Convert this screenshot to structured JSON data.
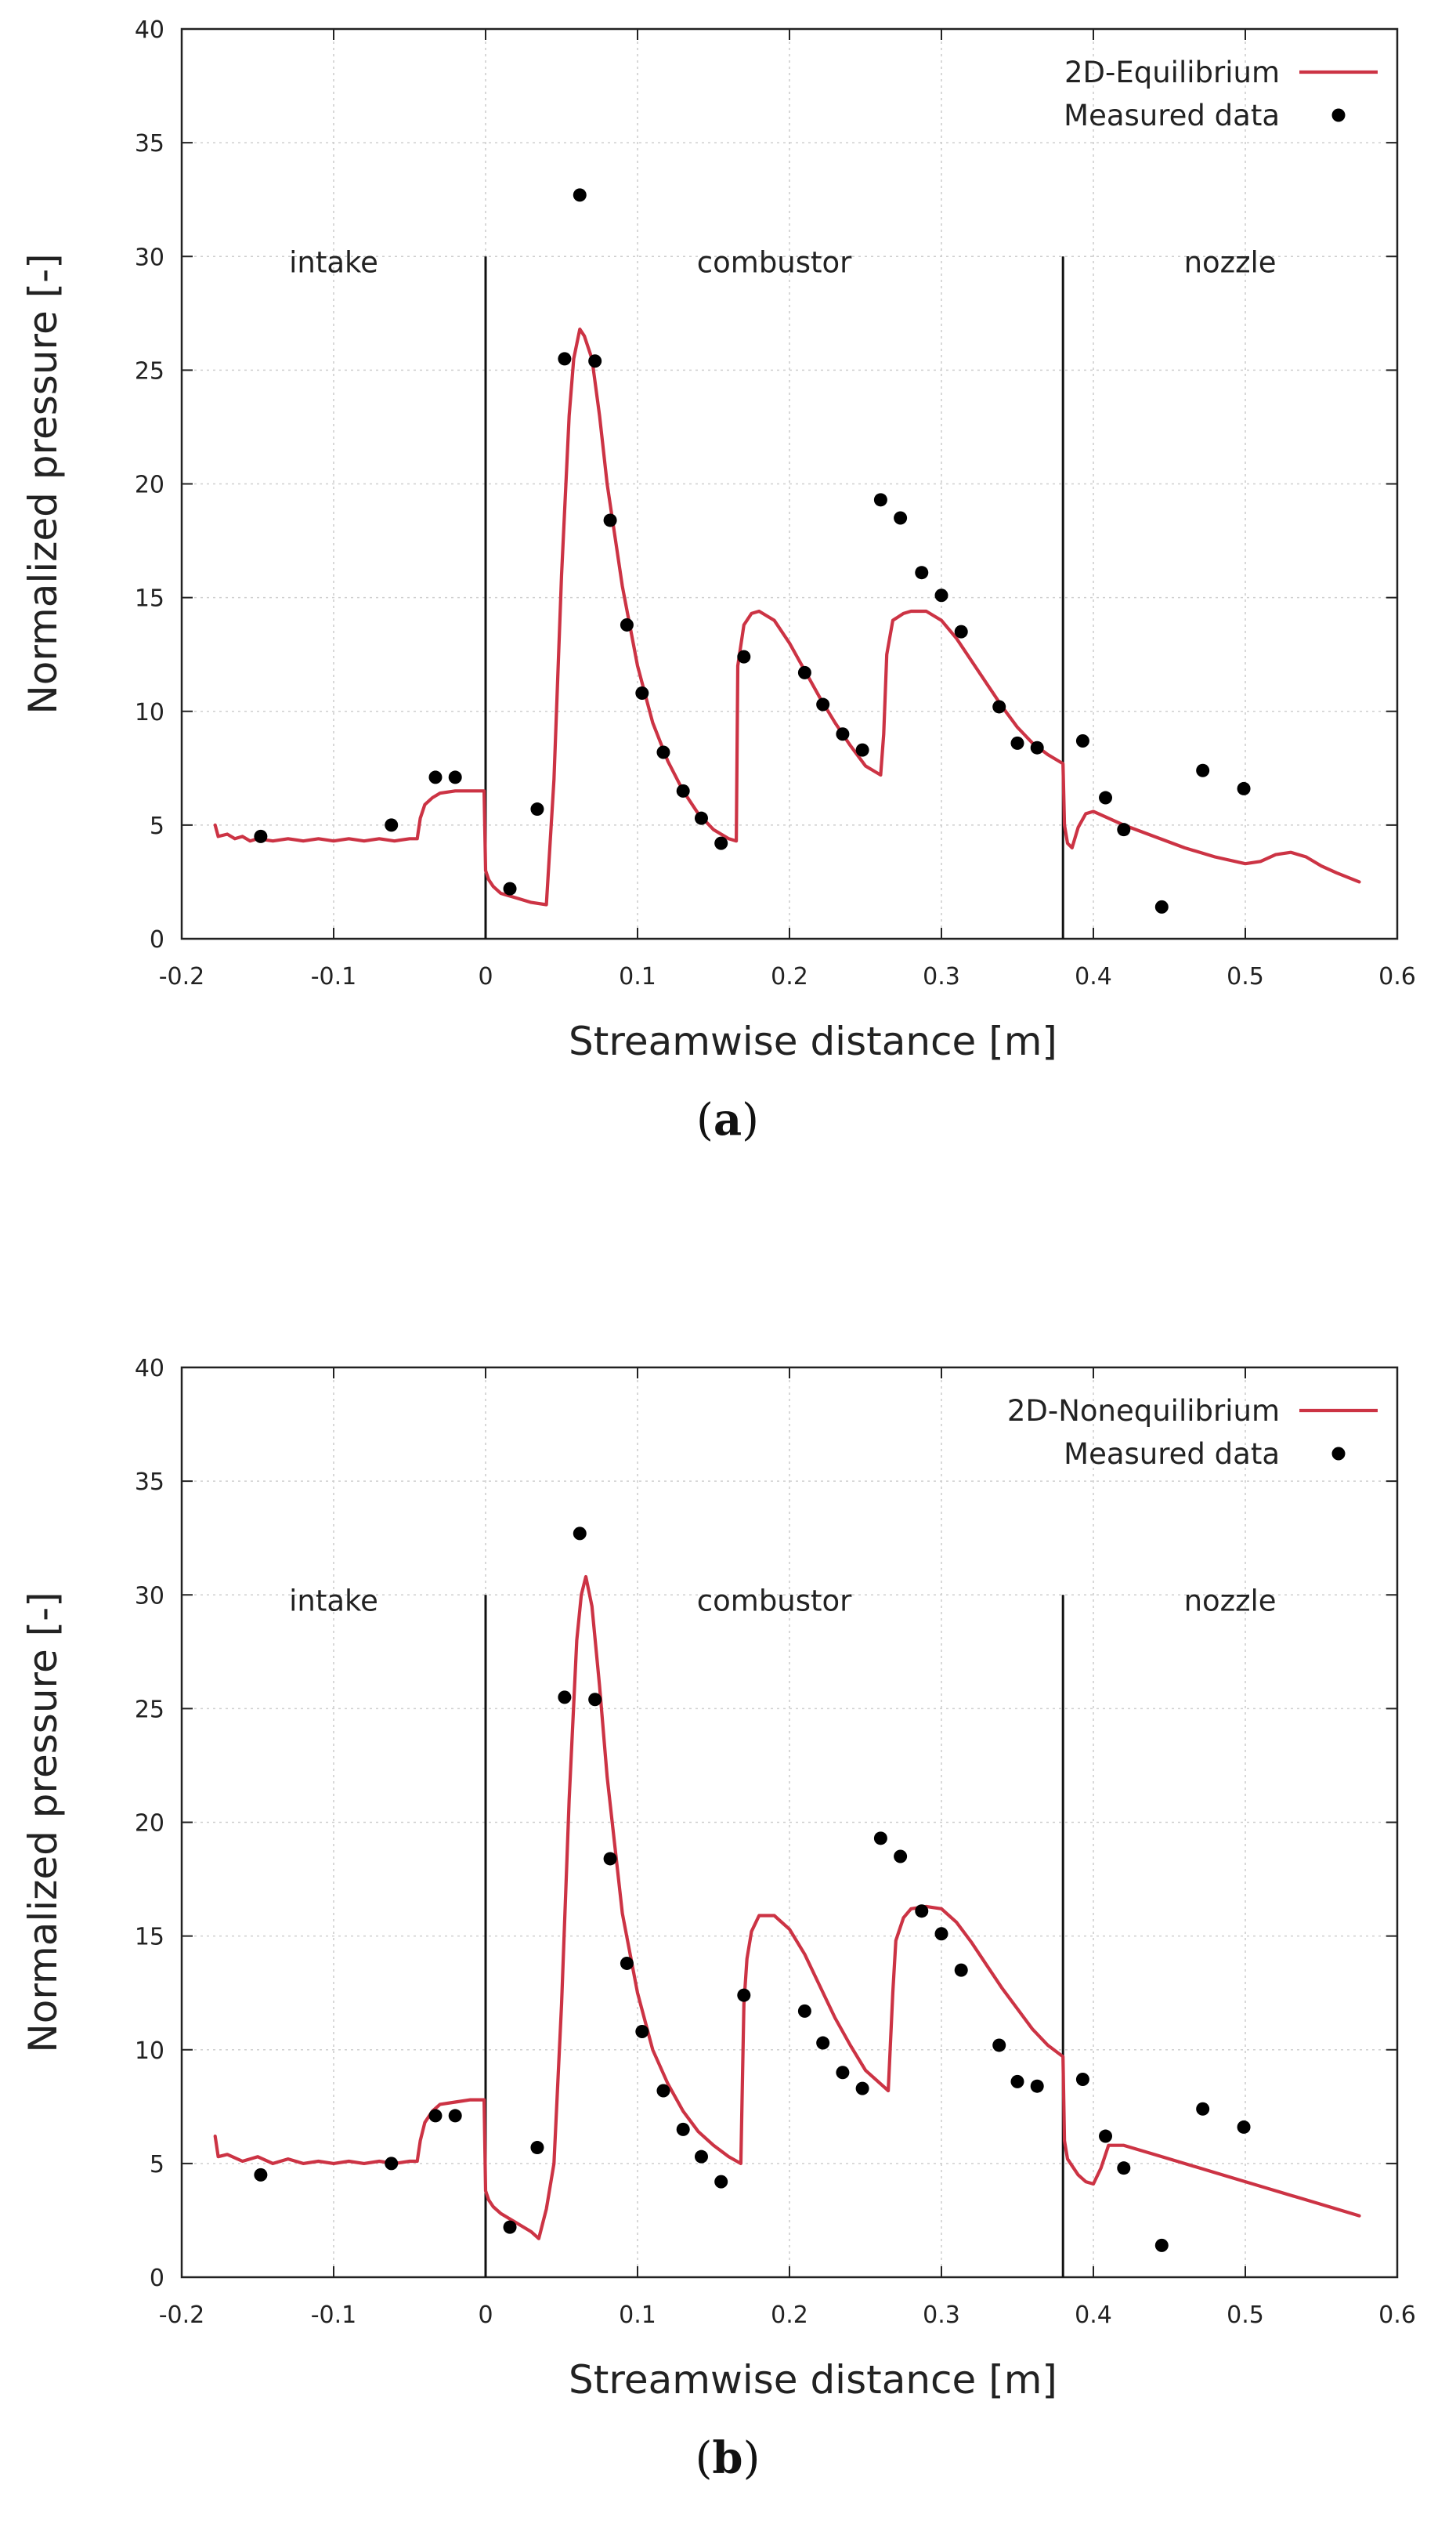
{
  "chart_data": [
    {
      "type": "line",
      "panel": "a",
      "caption": "a",
      "xlabel": "Streamwise distance [m]",
      "ylabel": "Normalized pressure [-]",
      "xlim": [
        -0.2,
        0.6
      ],
      "ylim": [
        0,
        40
      ],
      "xticks": [
        "-0.2",
        "-0.1",
        "0",
        "0.1",
        "0.2",
        "0.3",
        "0.4",
        "0.5",
        "0.6"
      ],
      "yticks": [
        "0",
        "5",
        "10",
        "15",
        "20",
        "25",
        "30",
        "35",
        "40"
      ],
      "grid": true,
      "legend_position": "top-right",
      "regions": [
        {
          "label": "intake",
          "x": -0.1
        },
        {
          "label": "combustor",
          "x": 0.19
        },
        {
          "label": "nozzle",
          "x": 0.49
        }
      ],
      "dividers": [
        {
          "x": 0.0,
          "ymax": 30
        },
        {
          "x": 0.38,
          "ymax": 30
        }
      ],
      "series": [
        {
          "name": "2D-Equilibrium",
          "kind": "line",
          "color": "#cc3344",
          "x": [
            -0.178,
            -0.176,
            -0.17,
            -0.165,
            -0.16,
            -0.155,
            -0.15,
            -0.14,
            -0.13,
            -0.12,
            -0.11,
            -0.1,
            -0.09,
            -0.08,
            -0.07,
            -0.06,
            -0.05,
            -0.045,
            -0.043,
            -0.04,
            -0.035,
            -0.03,
            -0.02,
            -0.01,
            -0.001,
            0.0,
            0.002,
            0.005,
            0.01,
            0.02,
            0.03,
            0.04,
            0.045,
            0.05,
            0.055,
            0.058,
            0.062,
            0.065,
            0.07,
            0.075,
            0.08,
            0.09,
            0.1,
            0.11,
            0.12,
            0.13,
            0.14,
            0.15,
            0.16,
            0.165,
            0.166,
            0.17,
            0.175,
            0.18,
            0.19,
            0.2,
            0.21,
            0.22,
            0.23,
            0.24,
            0.25,
            0.26,
            0.262,
            0.264,
            0.268,
            0.275,
            0.28,
            0.29,
            0.3,
            0.31,
            0.32,
            0.33,
            0.34,
            0.35,
            0.36,
            0.37,
            0.38,
            0.381,
            0.383,
            0.386,
            0.39,
            0.395,
            0.4,
            0.41,
            0.42,
            0.44,
            0.46,
            0.48,
            0.5,
            0.51,
            0.52,
            0.53,
            0.54,
            0.55,
            0.56,
            0.575
          ],
          "y": [
            5.0,
            4.5,
            4.6,
            4.4,
            4.5,
            4.3,
            4.4,
            4.3,
            4.4,
            4.3,
            4.4,
            4.3,
            4.4,
            4.3,
            4.4,
            4.3,
            4.4,
            4.4,
            5.3,
            5.9,
            6.2,
            6.4,
            6.5,
            6.5,
            6.5,
            3.0,
            2.6,
            2.3,
            2.0,
            1.8,
            1.6,
            1.5,
            7.0,
            16.0,
            23.0,
            25.5,
            26.8,
            26.5,
            25.5,
            23.0,
            20.0,
            15.5,
            12.0,
            9.5,
            7.8,
            6.5,
            5.5,
            4.8,
            4.4,
            4.3,
            12.0,
            13.8,
            14.3,
            14.4,
            14.0,
            13.0,
            11.8,
            10.6,
            9.5,
            8.5,
            7.6,
            7.2,
            9.0,
            12.5,
            14.0,
            14.3,
            14.4,
            14.4,
            14.0,
            13.2,
            12.2,
            11.2,
            10.2,
            9.3,
            8.6,
            8.1,
            7.7,
            5.0,
            4.2,
            4.0,
            4.9,
            5.5,
            5.6,
            5.3,
            5.0,
            4.5,
            4.0,
            3.6,
            3.3,
            3.4,
            3.7,
            3.8,
            3.6,
            3.2,
            2.9,
            2.5
          ]
        },
        {
          "name": "Measured data",
          "kind": "scatter",
          "color": "#000000",
          "x": [
            -0.148,
            -0.062,
            -0.033,
            -0.02,
            0.016,
            0.034,
            0.052,
            0.062,
            0.072,
            0.082,
            0.093,
            0.103,
            0.117,
            0.13,
            0.142,
            0.155,
            0.17,
            0.21,
            0.222,
            0.235,
            0.248,
            0.26,
            0.273,
            0.287,
            0.3,
            0.313,
            0.338,
            0.35,
            0.363,
            0.393,
            0.408,
            0.42,
            0.445,
            0.472,
            0.499
          ],
          "y": [
            4.5,
            5.0,
            7.1,
            7.1,
            2.2,
            5.7,
            25.5,
            32.7,
            25.4,
            18.4,
            13.8,
            10.8,
            8.2,
            6.5,
            5.3,
            4.2,
            12.4,
            11.7,
            10.3,
            9.0,
            8.3,
            19.3,
            18.5,
            16.1,
            15.1,
            13.5,
            10.2,
            8.6,
            8.4,
            8.7,
            6.2,
            4.8,
            1.4,
            7.4,
            6.6
          ]
        }
      ]
    },
    {
      "type": "line",
      "panel": "b",
      "caption": "b",
      "xlabel": "Streamwise distance [m]",
      "ylabel": "Normalized pressure [-]",
      "xlim": [
        -0.2,
        0.6
      ],
      "ylim": [
        0,
        40
      ],
      "xticks": [
        "-0.2",
        "-0.1",
        "0",
        "0.1",
        "0.2",
        "0.3",
        "0.4",
        "0.5",
        "0.6"
      ],
      "yticks": [
        "0",
        "5",
        "10",
        "15",
        "20",
        "25",
        "30",
        "35",
        "40"
      ],
      "grid": true,
      "legend_position": "top-right",
      "regions": [
        {
          "label": "intake",
          "x": -0.1
        },
        {
          "label": "combustor",
          "x": 0.19
        },
        {
          "label": "nozzle",
          "x": 0.49
        }
      ],
      "dividers": [
        {
          "x": 0.0,
          "ymax": 30
        },
        {
          "x": 0.38,
          "ymax": 30
        }
      ],
      "series": [
        {
          "name": "2D-Nonequilibrium",
          "kind": "line",
          "color": "#cc3344",
          "x": [
            -0.178,
            -0.176,
            -0.17,
            -0.16,
            -0.15,
            -0.14,
            -0.13,
            -0.12,
            -0.11,
            -0.1,
            -0.09,
            -0.08,
            -0.07,
            -0.06,
            -0.05,
            -0.045,
            -0.043,
            -0.04,
            -0.035,
            -0.03,
            -0.02,
            -0.01,
            -0.001,
            0.0,
            0.002,
            0.005,
            0.01,
            0.02,
            0.03,
            0.035,
            0.04,
            0.045,
            0.05,
            0.055,
            0.06,
            0.063,
            0.066,
            0.07,
            0.075,
            0.08,
            0.09,
            0.1,
            0.11,
            0.12,
            0.13,
            0.14,
            0.15,
            0.16,
            0.168,
            0.17,
            0.172,
            0.175,
            0.18,
            0.19,
            0.2,
            0.21,
            0.22,
            0.23,
            0.24,
            0.25,
            0.265,
            0.268,
            0.27,
            0.275,
            0.28,
            0.29,
            0.3,
            0.31,
            0.32,
            0.33,
            0.34,
            0.35,
            0.36,
            0.37,
            0.38,
            0.381,
            0.383,
            0.386,
            0.39,
            0.395,
            0.4,
            0.405,
            0.41,
            0.42,
            0.44,
            0.46,
            0.48,
            0.5,
            0.52,
            0.54,
            0.56,
            0.575
          ],
          "y": [
            6.2,
            5.3,
            5.4,
            5.1,
            5.3,
            5.0,
            5.2,
            5.0,
            5.1,
            5.0,
            5.1,
            5.0,
            5.1,
            5.0,
            5.1,
            5.1,
            6.0,
            6.8,
            7.3,
            7.6,
            7.7,
            7.8,
            7.8,
            3.8,
            3.4,
            3.1,
            2.8,
            2.4,
            2.0,
            1.7,
            3.0,
            5.0,
            12.0,
            21.0,
            28.0,
            30.0,
            30.8,
            29.5,
            26.0,
            22.0,
            16.0,
            12.5,
            10.0,
            8.5,
            7.3,
            6.4,
            5.8,
            5.3,
            5.0,
            12.0,
            14.0,
            15.2,
            15.9,
            15.9,
            15.3,
            14.2,
            12.8,
            11.4,
            10.2,
            9.1,
            8.2,
            12.5,
            14.8,
            15.8,
            16.2,
            16.3,
            16.2,
            15.6,
            14.7,
            13.7,
            12.7,
            11.8,
            10.9,
            10.2,
            9.7,
            6.0,
            5.2,
            4.9,
            4.5,
            4.2,
            4.1,
            4.8,
            5.8,
            5.8,
            5.4,
            5.0,
            4.6,
            4.2,
            3.8,
            3.4,
            3.0,
            2.7
          ]
        },
        {
          "name": "Measured data",
          "kind": "scatter",
          "color": "#000000",
          "x": [
            -0.148,
            -0.062,
            -0.033,
            -0.02,
            0.016,
            0.034,
            0.052,
            0.062,
            0.072,
            0.082,
            0.093,
            0.103,
            0.117,
            0.13,
            0.142,
            0.155,
            0.17,
            0.21,
            0.222,
            0.235,
            0.248,
            0.26,
            0.273,
            0.287,
            0.3,
            0.313,
            0.338,
            0.35,
            0.363,
            0.393,
            0.408,
            0.42,
            0.445,
            0.472,
            0.499
          ],
          "y": [
            4.5,
            5.0,
            7.1,
            7.1,
            2.2,
            5.7,
            25.5,
            32.7,
            25.4,
            18.4,
            13.8,
            10.8,
            8.2,
            6.5,
            5.3,
            4.2,
            12.4,
            11.7,
            10.3,
            9.0,
            8.3,
            19.3,
            18.5,
            16.1,
            15.1,
            13.5,
            10.2,
            8.6,
            8.4,
            8.7,
            6.2,
            4.8,
            1.4,
            7.4,
            6.6
          ]
        }
      ]
    }
  ]
}
